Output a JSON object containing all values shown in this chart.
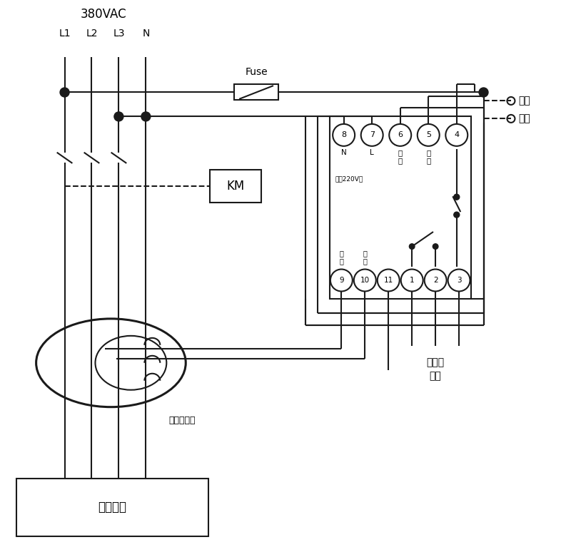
{
  "bg": "#ffffff",
  "lc": "#1a1a1a",
  "lw": 1.5,
  "lw2": 2.2,
  "voltage_label": "380VAC",
  "phase_labels": [
    "L1",
    "L2",
    "L3",
    "N"
  ],
  "fuse_label": "Fuse",
  "km_label": "KM",
  "zero_seq_label": "零序互感器",
  "user_device_label": "用户设备",
  "alarm_label": "接声光\n报警",
  "self_lock_line1": "自锁",
  "self_lock_line2": "开关",
  "top_terms": [
    "8",
    "7",
    "6",
    "5",
    "4"
  ],
  "top_term_labels_line1": [
    "N",
    "L",
    "试",
    "试",
    ""
  ],
  "top_term_labels_line2": [
    "",
    "",
    "验",
    "验",
    ""
  ],
  "power_label": "电源220V～",
  "bot_terms": [
    "9",
    "10",
    "11",
    "1",
    "2",
    "3"
  ],
  "bot_sub_labels": [
    "信\n号",
    "信\n号",
    "",
    "",
    "",
    ""
  ]
}
